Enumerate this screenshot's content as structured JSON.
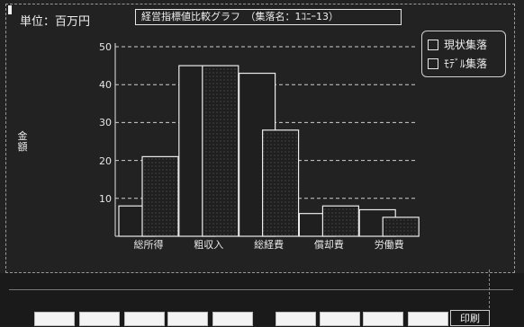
{
  "screen": {
    "unit_label": "単位：百万円",
    "title": "経営指標値比較グラフ　（集落名：1ｺﾆｰ13）",
    "print_label": "印刷"
  },
  "legend": {
    "items": [
      {
        "label": "現状集落",
        "icon": "hollow-square-icon"
      },
      {
        "label": "ﾓﾃﾞﾙ集落",
        "icon": "hollow-square-icon"
      }
    ]
  },
  "function_keys": {
    "count": 10,
    "labels": [
      "",
      "",
      "",
      "",
      "",
      "",
      "",
      "",
      "",
      ""
    ]
  },
  "colors": {
    "background": "#1c1c1c",
    "foreground": "#e6e6e6",
    "key_face": "#f3f3f3"
  },
  "chart_data": {
    "type": "bar",
    "title": "経営指標値比較グラフ",
    "ylabel": "金額",
    "xlabel": "",
    "ylim": [
      0,
      50
    ],
    "yticks": [
      10,
      20,
      30,
      40,
      50
    ],
    "grid": true,
    "legend_position": "top-right",
    "categories": [
      "総所得",
      "粗収入",
      "総経費",
      "償却費",
      "労働費"
    ],
    "series": [
      {
        "name": "現状集落",
        "values": [
          8,
          45,
          43,
          6,
          7
        ]
      },
      {
        "name": "ﾓﾃﾞﾙ集落",
        "values": [
          21,
          45,
          28,
          8,
          5
        ]
      }
    ]
  }
}
